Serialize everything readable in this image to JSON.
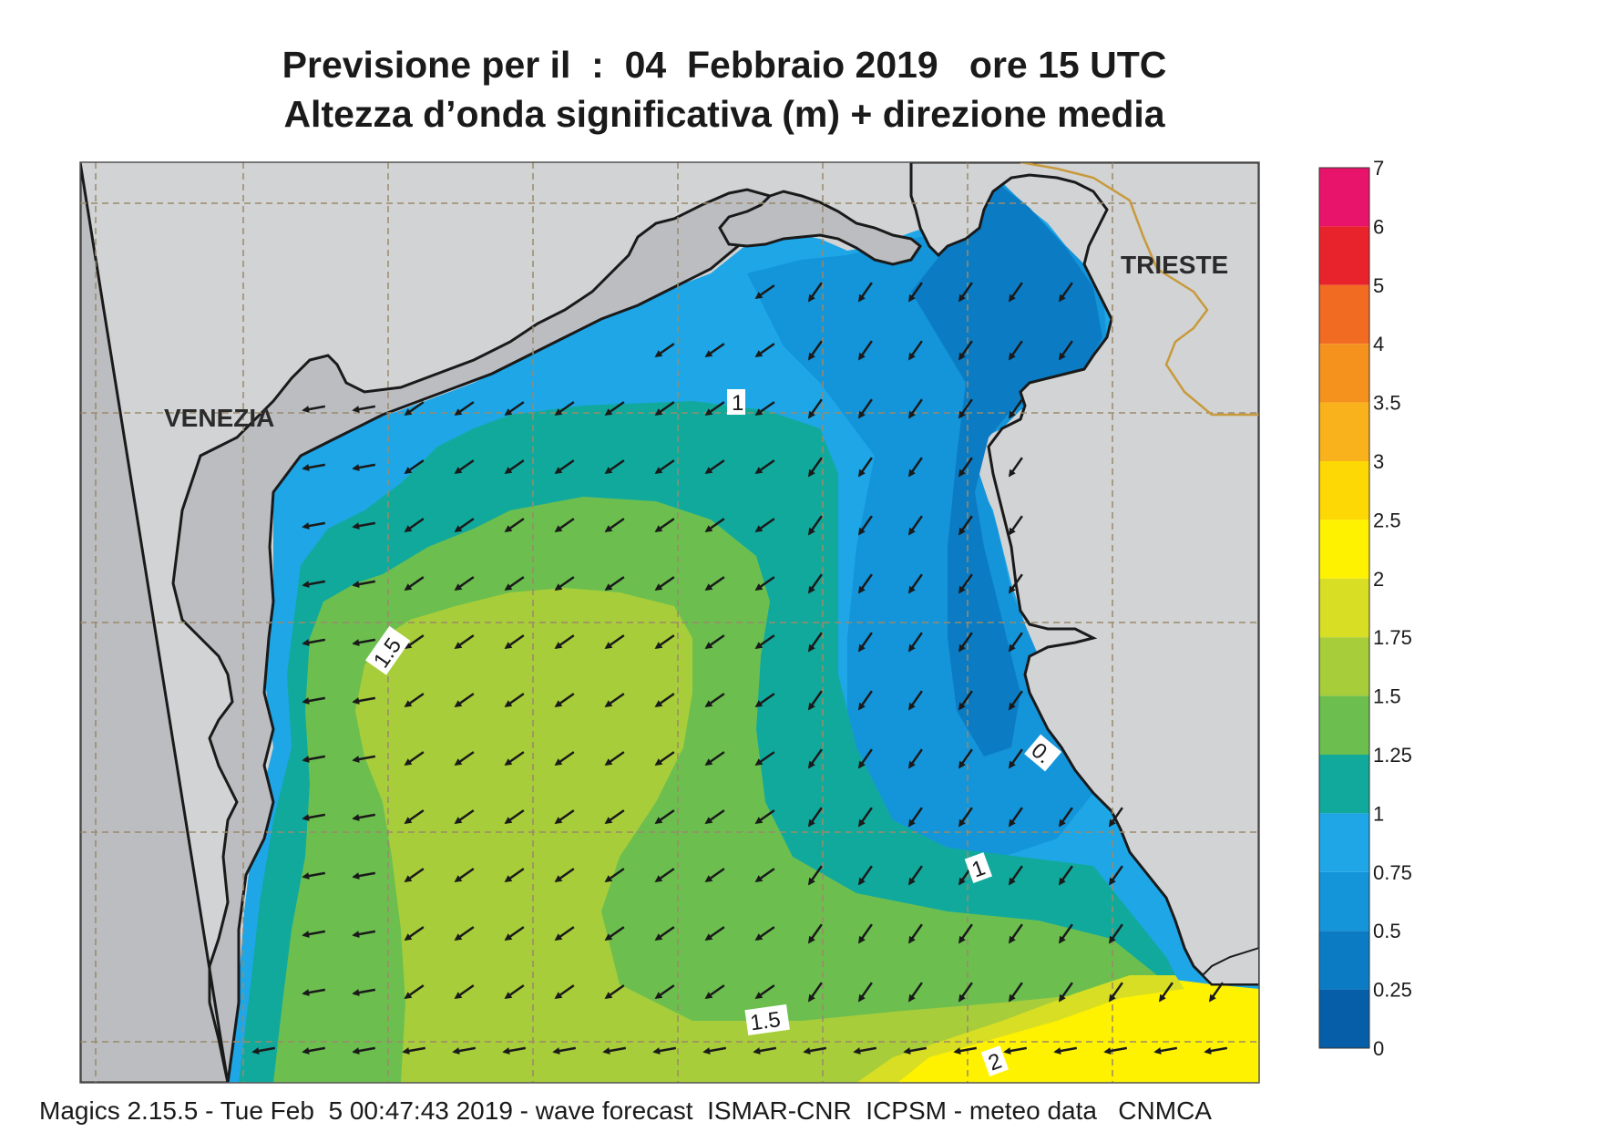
{
  "title_line1": "Previsione per il  :  04  Febbraio 2019   ore 15 UTC",
  "title_line2": "Altezza d’onda significativa (m) + direzione media",
  "labels": {
    "venezia": "VENEZIA",
    "trieste": "TRIESTE",
    "contour_1_north": "1",
    "contour_1_east": "1",
    "contour_1_5_west": "1.5",
    "contour_1_5_south": "1.5",
    "contour_2": "2",
    "contour_0": "0."
  },
  "legend": {
    "levels": [
      "7",
      "6",
      "5",
      "4",
      "3.5",
      "3",
      "2.5",
      "2",
      "1.75",
      "1.5",
      "1.25",
      "1",
      "0.75",
      "0.5",
      "0.25",
      "0"
    ],
    "colors": [
      "#e8136a",
      "#e8232b",
      "#f26b22",
      "#f5921e",
      "#f9b21c",
      "#fdd805",
      "#fff200",
      "#d7de24",
      "#a8cd3a",
      "#6cbf4f",
      "#12a99d",
      "#1ea6e6",
      "#1494d9",
      "#0b7cc4",
      "#075ea8"
    ]
  },
  "colors": {
    "land": "#d2d3d5",
    "land_dark": "#bcbdc0",
    "coast": "#1a1a1a",
    "border": "#c79a3c"
  },
  "footer": "Magics 2.15.5 - Tue Feb  5 00:47:43 2019 - wave forecast  ISMAR-CNR  ICPSM - meteo data   CNMCA"
}
